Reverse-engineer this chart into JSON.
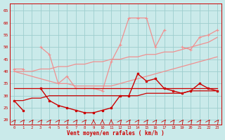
{
  "x": [
    0,
    1,
    2,
    3,
    4,
    5,
    6,
    7,
    8,
    9,
    10,
    11,
    12,
    13,
    14,
    15,
    16,
    17,
    18,
    19,
    20,
    21,
    22,
    23
  ],
  "line_light_jagged": [
    41,
    41,
    null,
    50,
    47,
    35,
    38,
    33,
    33,
    33,
    32,
    44,
    51,
    62,
    62,
    62,
    50,
    57,
    null,
    50,
    49,
    54,
    55,
    57
  ],
  "line_light_trend_upper": [
    40,
    40,
    40,
    41,
    41,
    42,
    42,
    43,
    43,
    44,
    44,
    45,
    45,
    46,
    46,
    47,
    47,
    48,
    48,
    49,
    50,
    51,
    52,
    54
  ],
  "line_light_trend_lower": [
    40,
    39,
    38,
    37,
    36,
    35,
    35,
    34,
    34,
    34,
    34,
    34,
    35,
    36,
    37,
    38,
    39,
    40,
    41,
    42,
    43,
    44,
    45,
    46
  ],
  "line_dark_jagged": [
    28,
    24,
    null,
    33,
    28,
    26,
    25,
    24,
    23,
    23,
    24,
    25,
    30,
    30,
    39,
    36,
    37,
    33,
    32,
    31,
    32,
    35,
    33,
    32
  ],
  "line_dark_flat": [
    33,
    33,
    33,
    33,
    33,
    33,
    33,
    33,
    33,
    33,
    33,
    33,
    33,
    33,
    33,
    33,
    33,
    33,
    33,
    33,
    33,
    33,
    33,
    33
  ],
  "line_dark_trend": [
    28,
    28,
    29,
    29,
    30,
    30,
    30,
    30,
    30,
    30,
    30,
    30,
    30,
    30,
    30,
    31,
    31,
    31,
    31,
    31,
    32,
    32,
    32,
    32
  ],
  "ylim": [
    18,
    68
  ],
  "yticks": [
    20,
    25,
    30,
    35,
    40,
    45,
    50,
    55,
    60,
    65
  ],
  "xlabel": "Vent moyen/en rafales ( km/h )",
  "bg_color": "#caeaea",
  "grid_color": "#9dcece",
  "dark_red": "#cc0000",
  "light_red": "#f09090",
  "arrow_color": "#cc0000"
}
